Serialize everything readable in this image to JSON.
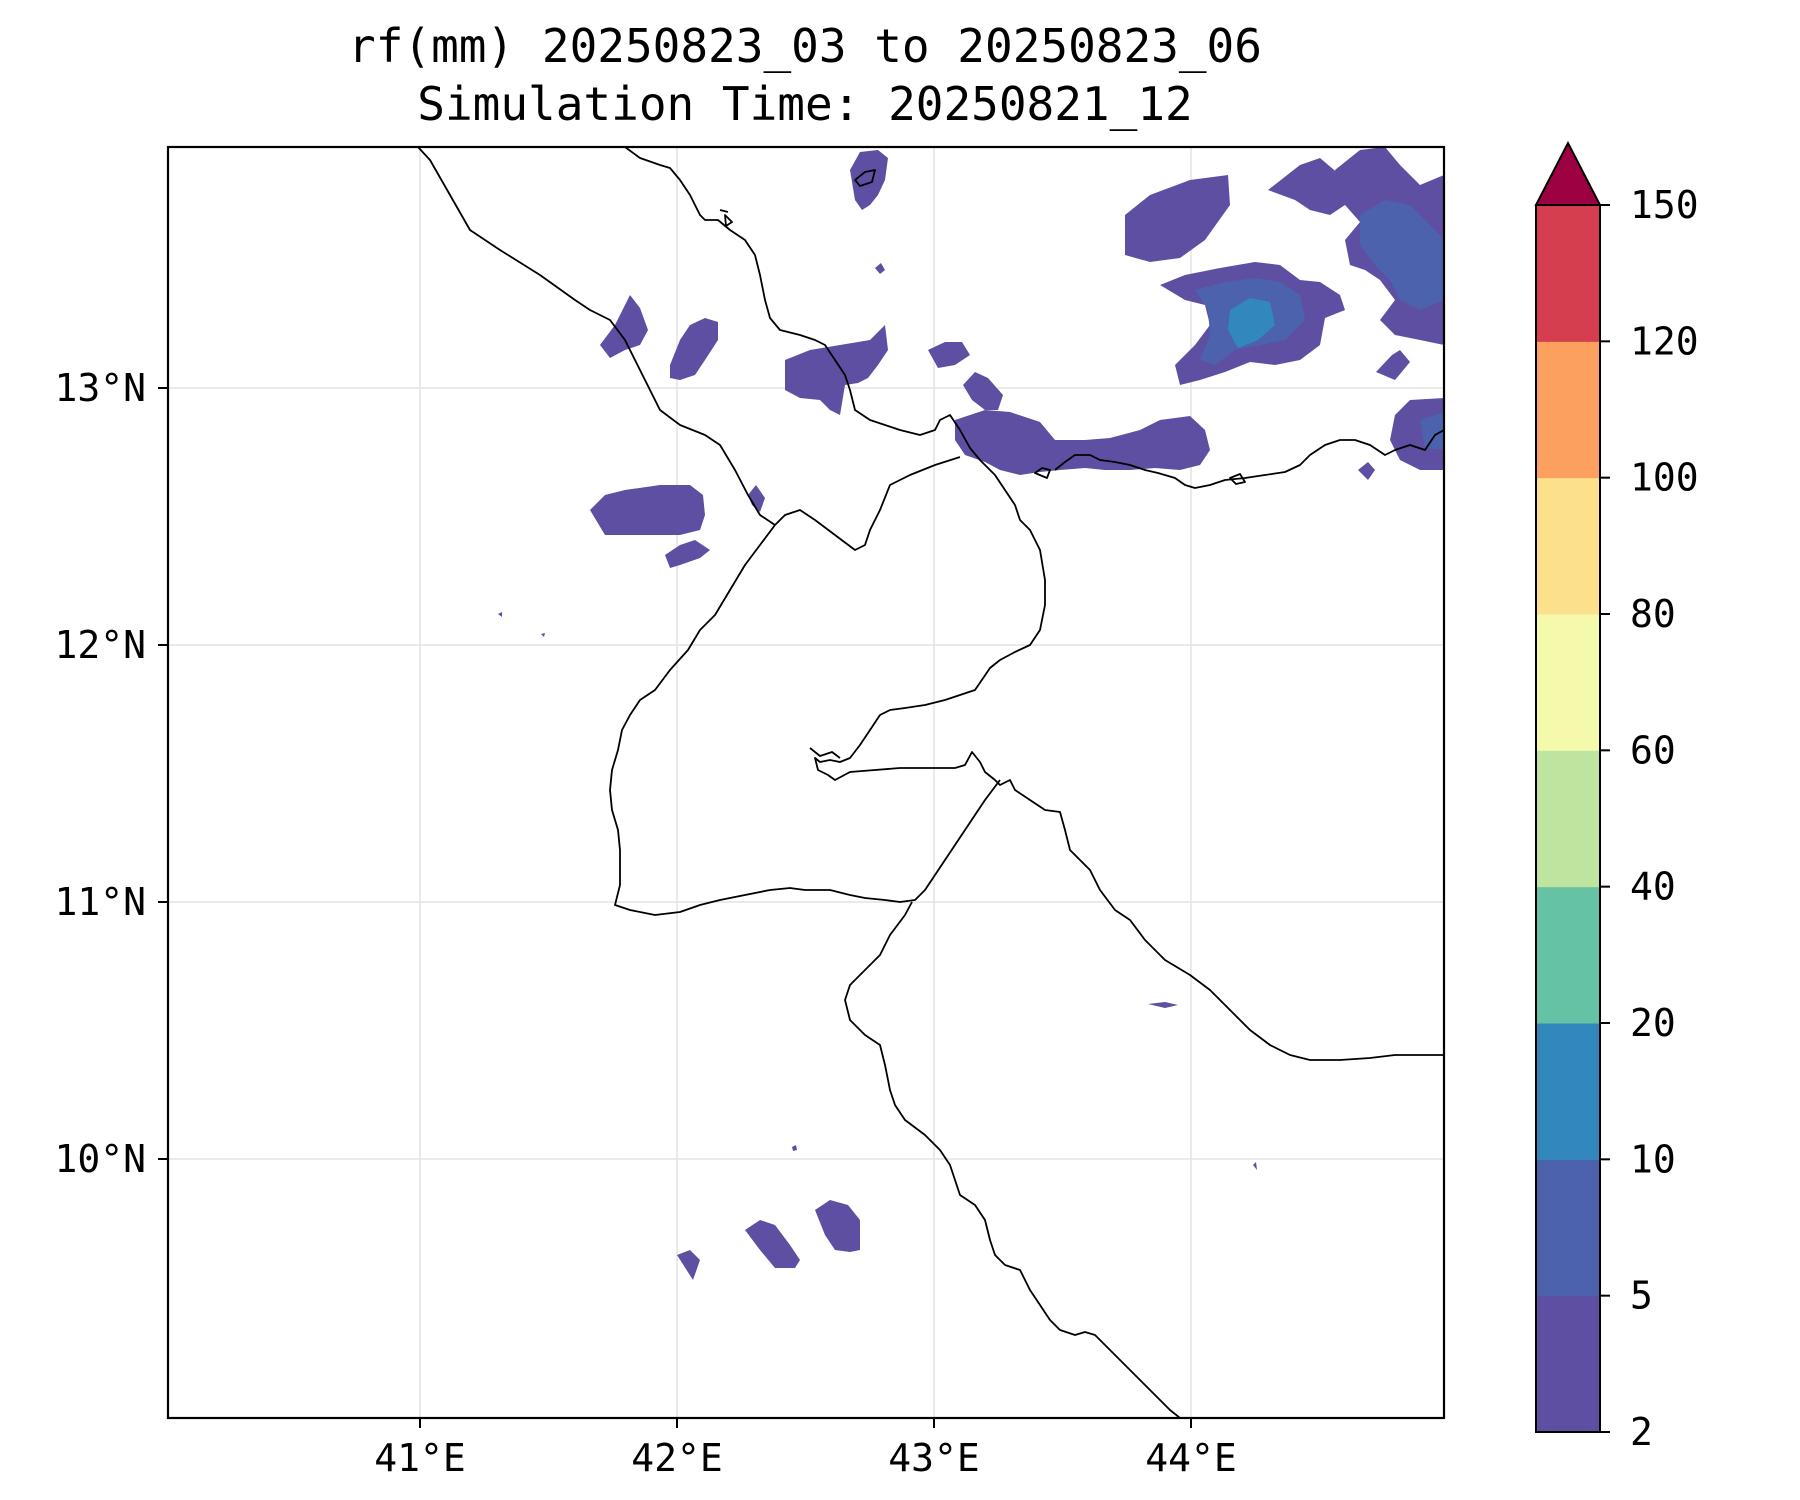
{
  "title": {
    "line1": "rf(mm) 20250823_03 to 20250823_06",
    "line2": "Simulation Time: 20250821_12"
  },
  "map": {
    "x_ticks": [
      "41°E",
      "42°E",
      "43°E",
      "44°E"
    ],
    "y_ticks": [
      "13°N",
      "12°N",
      "11°N",
      "10°N"
    ],
    "lon_range": [
      40.0,
      44.97
    ],
    "lat_range": [
      9.05,
      13.93
    ],
    "grid": true
  },
  "colorbar": {
    "levels": [
      "2",
      "5",
      "10",
      "20",
      "40",
      "60",
      "80",
      "100",
      "120",
      "150"
    ],
    "colors": [
      "#5e4fa2",
      "#4c62ad",
      "#3288bd",
      "#66c2a5",
      "#bde5a0",
      "#f4f9ab",
      "#fde08b",
      "#fba05e",
      "#d53e4f",
      "#9e0142"
    ],
    "extend": "max"
  },
  "legend_colors": {
    "rain_2_5": "#5e4fa2",
    "rain_5_10": "#4c62ad",
    "rain_10_20": "#3288bd"
  }
}
